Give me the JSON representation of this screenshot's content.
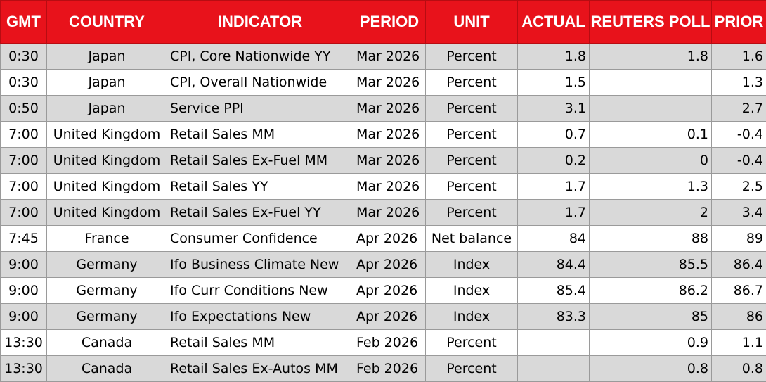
{
  "headers": {
    "gmt": "GMT",
    "country": "COUNTRY",
    "indicator": "INDICATOR",
    "period": "PERIOD",
    "unit": "UNIT",
    "actual": "ACTUAL",
    "reuters_poll": "REUTERS POLL",
    "prior": "PRIOR"
  },
  "colors": {
    "header_background": "#e8121b",
    "header_text": "#ffffff",
    "shaded_row": "#d9d9d9"
  },
  "rows": [
    {
      "gmt": "0:30",
      "country": "Japan",
      "indicator": "CPI, Core Nationwide YY",
      "period": "Mar 2026",
      "unit": "Percent",
      "actual": "1.8",
      "poll": "1.8",
      "prior": "1.6"
    },
    {
      "gmt": "0:30",
      "country": "Japan",
      "indicator": "CPI, Overall Nationwide",
      "period": "Mar 2026",
      "unit": "Percent",
      "actual": "1.5",
      "poll": "",
      "prior": "1.3"
    },
    {
      "gmt": "0:50",
      "country": "Japan",
      "indicator": "Service PPI",
      "period": "Mar 2026",
      "unit": "Percent",
      "actual": "3.1",
      "poll": "",
      "prior": "2.7"
    },
    {
      "gmt": "7:00",
      "country": "United Kingdom",
      "indicator": "Retail Sales MM",
      "period": "Mar 2026",
      "unit": "Percent",
      "actual": "0.7",
      "poll": "0.1",
      "prior": "-0.4"
    },
    {
      "gmt": "7:00",
      "country": "United Kingdom",
      "indicator": "Retail Sales Ex-Fuel MM",
      "period": "Mar 2026",
      "unit": "Percent",
      "actual": "0.2",
      "poll": "0",
      "prior": "-0.4"
    },
    {
      "gmt": "7:00",
      "country": "United Kingdom",
      "indicator": "Retail Sales YY",
      "period": "Mar 2026",
      "unit": "Percent",
      "actual": "1.7",
      "poll": "1.3",
      "prior": "2.5"
    },
    {
      "gmt": "7:00",
      "country": "United Kingdom",
      "indicator": "Retail Sales Ex-Fuel YY",
      "period": "Mar 2026",
      "unit": "Percent",
      "actual": "1.7",
      "poll": "2",
      "prior": "3.4"
    },
    {
      "gmt": "7:45",
      "country": "France",
      "indicator": "Consumer Confidence",
      "period": "Apr 2026",
      "unit": "Net balance",
      "actual": "84",
      "poll": "88",
      "prior": "89"
    },
    {
      "gmt": "9:00",
      "country": "Germany",
      "indicator": "Ifo Business Climate New",
      "period": "Apr 2026",
      "unit": "Index",
      "actual": "84.4",
      "poll": "85.5",
      "prior": "86.4"
    },
    {
      "gmt": "9:00",
      "country": "Germany",
      "indicator": "Ifo Curr Conditions New",
      "period": "Apr 2026",
      "unit": "Index",
      "actual": "85.4",
      "poll": "86.2",
      "prior": "86.7"
    },
    {
      "gmt": "9:00",
      "country": "Germany",
      "indicator": "Ifo Expectations New",
      "period": "Apr 2026",
      "unit": "Index",
      "actual": "83.3",
      "poll": "85",
      "prior": "86"
    },
    {
      "gmt": "13:30",
      "country": "Canada",
      "indicator": "Retail Sales MM",
      "period": "Feb 2026",
      "unit": "Percent",
      "actual": "",
      "poll": "0.9",
      "prior": "1.1"
    },
    {
      "gmt": "13:30",
      "country": "Canada",
      "indicator": "Retail Sales Ex-Autos MM",
      "period": "Feb 2026",
      "unit": "Percent",
      "actual": "",
      "poll": "0.8",
      "prior": "0.8"
    }
  ]
}
